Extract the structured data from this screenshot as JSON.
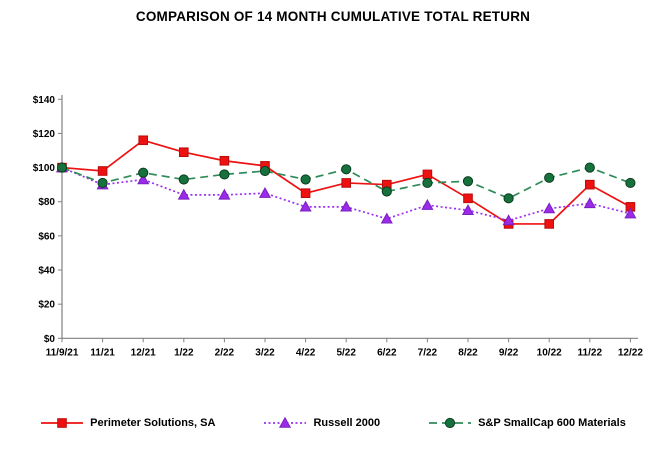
{
  "title": "COMPARISON OF 14 MONTH CUMULATIVE TOTAL RETURN",
  "chart_data": {
    "type": "line",
    "title": "COMPARISON OF 14 MONTH CUMULATIVE TOTAL RETURN",
    "categories": [
      "11/9/21",
      "11/21",
      "12/21",
      "1/22",
      "2/22",
      "3/22",
      "4/22",
      "5/22",
      "6/22",
      "7/22",
      "8/22",
      "9/22",
      "10/22",
      "11/22",
      "12/22"
    ],
    "series": [
      {
        "name": "Perimeter Solutions, SA",
        "marker": "square",
        "line_style": "solid",
        "dash": "",
        "color": "#ee1111",
        "fill": "#ee1111",
        "stroke": "#b80c0c",
        "values": [
          100,
          98,
          116,
          109,
          104,
          101,
          85,
          91,
          90,
          96,
          82,
          67,
          67,
          90,
          77
        ]
      },
      {
        "name": "Russell 2000",
        "marker": "triangle",
        "line_style": "dotted",
        "dash": "2 2.5",
        "color": "#9b30f2",
        "fill": "#9b2be8",
        "stroke": "#7a1fc0",
        "values": [
          100,
          90,
          93,
          84,
          84,
          85,
          77,
          77,
          70,
          78,
          75,
          69,
          76,
          79,
          73
        ]
      },
      {
        "name": "S&P SmallCap 600 Materials",
        "marker": "circle",
        "line_style": "dashed",
        "dash": "8 5",
        "color": "#2e8b57",
        "fill": "#17713d",
        "stroke": "#0a3d20",
        "values": [
          100,
          91,
          97,
          93,
          96,
          98,
          93,
          99,
          86,
          91,
          92,
          82,
          94,
          100,
          91
        ]
      }
    ],
    "xlabel": "",
    "ylabel": "",
    "ylim": [
      0,
      140
    ],
    "ytick_step": 20,
    "ytick_prefix": "$",
    "grid": false,
    "legend_position": "bottom",
    "axis_color": "#808080"
  }
}
